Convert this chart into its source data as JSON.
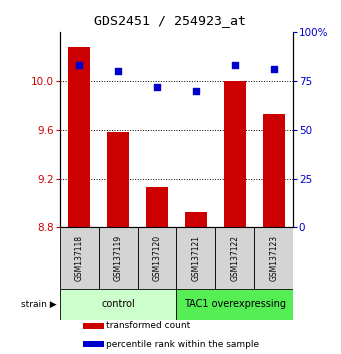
{
  "title": "GDS2451 / 254923_at",
  "samples": [
    "GSM137118",
    "GSM137119",
    "GSM137120",
    "GSM137121",
    "GSM137122",
    "GSM137123"
  ],
  "bar_values": [
    10.28,
    9.58,
    9.13,
    8.93,
    10.0,
    9.73
  ],
  "percentile_values": [
    83,
    80,
    72,
    70,
    83,
    81
  ],
  "ylim_left": [
    8.8,
    10.4
  ],
  "ylim_right": [
    0,
    100
  ],
  "yticks_left": [
    8.8,
    9.2,
    9.6,
    10.0
  ],
  "yticks_right": [
    0,
    25,
    50,
    75,
    100
  ],
  "ytick_labels_right": [
    "0",
    "25",
    "50",
    "75",
    "100%"
  ],
  "bar_color": "#cc0000",
  "dot_color": "#0000cc",
  "bar_bottom": 8.8,
  "groups": [
    {
      "label": "control",
      "start": 0,
      "end": 3,
      "color": "#ccffcc"
    },
    {
      "label": "TAC1 overexpressing",
      "start": 3,
      "end": 6,
      "color": "#55ee55"
    }
  ],
  "strain_label": "strain",
  "legend_items": [
    {
      "color": "#cc0000",
      "label": "transformed count"
    },
    {
      "color": "#0000cc",
      "label": "percentile rank within the sample"
    }
  ],
  "title_fontsize": 9.5,
  "tick_fontsize": 7.5,
  "sample_fontsize": 5.5,
  "group_fontsize": 7,
  "legend_fontsize": 6.5
}
